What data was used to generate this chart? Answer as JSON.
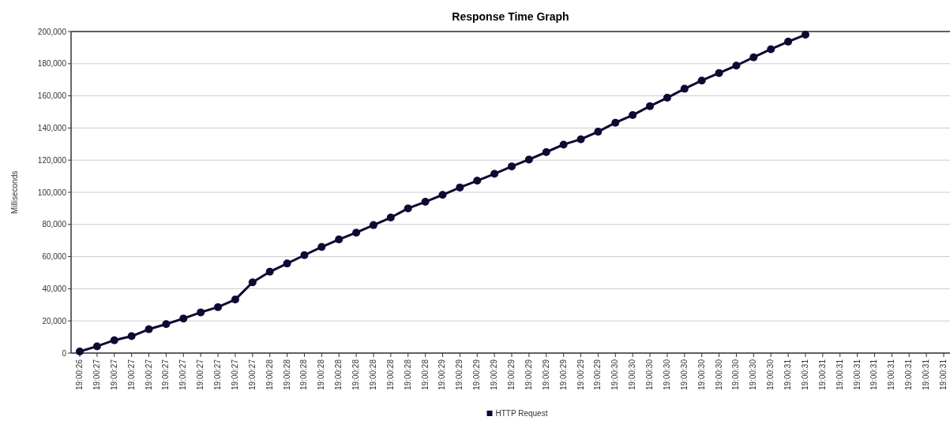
{
  "chart_data": {
    "type": "line",
    "title": "Response Time Graph",
    "ylabel": "Milliseconds",
    "categories": [
      "19:00:26",
      "19:00:27",
      "19:00:27",
      "19:00:27",
      "19:00:27",
      "19:00:27",
      "19:00:27",
      "19:00:27",
      "19:00:27",
      "19:00:27",
      "19:00:27",
      "19:00:28",
      "19:00:28",
      "19:00:28",
      "19:00:28",
      "19:00:28",
      "19:00:28",
      "19:00:28",
      "19:00:28",
      "19:00:28",
      "19:00:28",
      "19:00:29",
      "19:00:29",
      "19:00:29",
      "19:00:29",
      "19:00:29",
      "19:00:29",
      "19:00:29",
      "19:00:29",
      "19:00:29",
      "19:00:29",
      "19:00:30",
      "19:00:30",
      "19:00:30",
      "19:00:30",
      "19:00:30",
      "19:00:30",
      "19:00:30",
      "19:00:30",
      "19:00:30",
      "19:00:30",
      "19:00:31",
      "19:00:31",
      "19:00:31",
      "19:00:31",
      "19:00:31",
      "19:00:31",
      "19:00:31",
      "19:00:31",
      "19:00:31",
      "19:00:31"
    ],
    "series": [
      {
        "name": "HTTP Request",
        "color": "#0a0a33",
        "values": [
          1000,
          4200,
          8000,
          10500,
          14800,
          18000,
          21500,
          25300,
          28600,
          33300,
          44000,
          50600,
          55700,
          60900,
          66000,
          70700,
          74900,
          79600,
          84300,
          90000,
          94100,
          98400,
          103000,
          107200,
          111500,
          116100,
          120400,
          125000,
          129700,
          133000,
          137700,
          143300,
          148000,
          153600,
          158800,
          164400,
          169500,
          174200,
          178800,
          184000,
          189000,
          193700,
          198000,
          null,
          null,
          null,
          null,
          null,
          null,
          null,
          null
        ]
      }
    ],
    "ylim": [
      0,
      200000
    ],
    "yticks": [
      {
        "value": 0,
        "label": "0"
      },
      {
        "value": 20000,
        "label": "20,000"
      },
      {
        "value": 40000,
        "label": "40,000"
      },
      {
        "value": 60000,
        "label": "60,000"
      },
      {
        "value": 80000,
        "label": "80,000"
      },
      {
        "value": 100000,
        "label": "100,000"
      },
      {
        "value": 120000,
        "label": "120,000"
      },
      {
        "value": 140000,
        "label": "140,000"
      },
      {
        "value": 160000,
        "label": "160,000"
      },
      {
        "value": 180000,
        "label": "180,000"
      },
      {
        "value": 200000,
        "label": "200,000"
      }
    ],
    "grid": "y",
    "legend": "bottom",
    "marker": "circle",
    "line_style": "solid"
  }
}
